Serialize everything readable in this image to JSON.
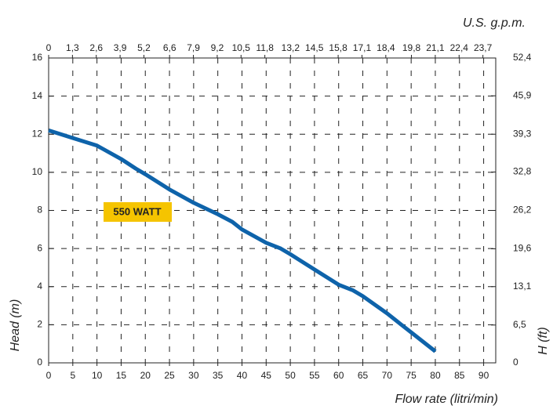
{
  "chart_data": {
    "type": "line",
    "x_label": "Flow rate (litri/min)",
    "y_label": "Head (m)",
    "y2_label": "H (ft)",
    "x2_label": "U.S. g.p.m.",
    "x": [
      0,
      5,
      10,
      15,
      18,
      20,
      25,
      30,
      35,
      38,
      40,
      45,
      48,
      50,
      55,
      60,
      63,
      65,
      70,
      73,
      75,
      80
    ],
    "series": [
      {
        "name": "550 WATT",
        "color": "#0e63aa",
        "values": [
          12.2,
          11.8,
          11.4,
          10.7,
          10.2,
          9.9,
          9.1,
          8.4,
          7.8,
          7.4,
          7.0,
          6.3,
          6.0,
          5.7,
          4.9,
          4.1,
          3.8,
          3.5,
          2.6,
          2.0,
          1.6,
          0.6
        ]
      }
    ],
    "xlim": [
      0,
      92.5
    ],
    "xticks": [
      0,
      5,
      10,
      15,
      20,
      25,
      30,
      35,
      40,
      45,
      50,
      55,
      60,
      65,
      70,
      75,
      80,
      85,
      90
    ],
    "ylim": [
      0,
      16
    ],
    "yticks": [
      0,
      2,
      4,
      6,
      8,
      10,
      12,
      14,
      16
    ],
    "y2lim": [
      0,
      52.4
    ],
    "y2ticks": [
      0,
      {
        "value": 6.5,
        "label": "6,5"
      },
      {
        "value": 13.1,
        "label": "13,1"
      },
      {
        "value": 19.6,
        "label": "19,6"
      },
      {
        "value": 26.2,
        "label": "26,2"
      },
      {
        "value": 32.8,
        "label": "32,8"
      },
      {
        "value": 39.3,
        "label": "39,3"
      },
      {
        "value": 45.9,
        "label": "45,9"
      },
      {
        "value": 52.4,
        "label": "52,4"
      }
    ],
    "x2lim": [
      0,
      24.4
    ],
    "x2ticks": [
      0,
      {
        "value": 1.3,
        "label": "1,3"
      },
      {
        "value": 2.6,
        "label": "2,6"
      },
      {
        "value": 3.9,
        "label": "3,9"
      },
      {
        "value": 5.2,
        "label": "5,2"
      },
      {
        "value": 6.6,
        "label": "6,6"
      },
      {
        "value": 7.9,
        "label": "7,9"
      },
      {
        "value": 9.2,
        "label": "9,2"
      },
      {
        "value": 10.5,
        "label": "10,5"
      },
      {
        "value": 11.8,
        "label": "11,8"
      },
      {
        "value": 13.2,
        "label": "13,2"
      },
      {
        "value": 14.5,
        "label": "14,5"
      },
      {
        "value": 15.8,
        "label": "15,8"
      },
      {
        "value": 17.1,
        "label": "17,1"
      },
      {
        "value": 18.4,
        "label": "18,4"
      },
      {
        "value": 19.8,
        "label": "19,8"
      },
      {
        "value": 21.1,
        "label": "21,1"
      },
      {
        "value": 22.4,
        "label": "22,4"
      },
      {
        "value": 23.7,
        "label": "23,7"
      }
    ],
    "grid": true
  }
}
